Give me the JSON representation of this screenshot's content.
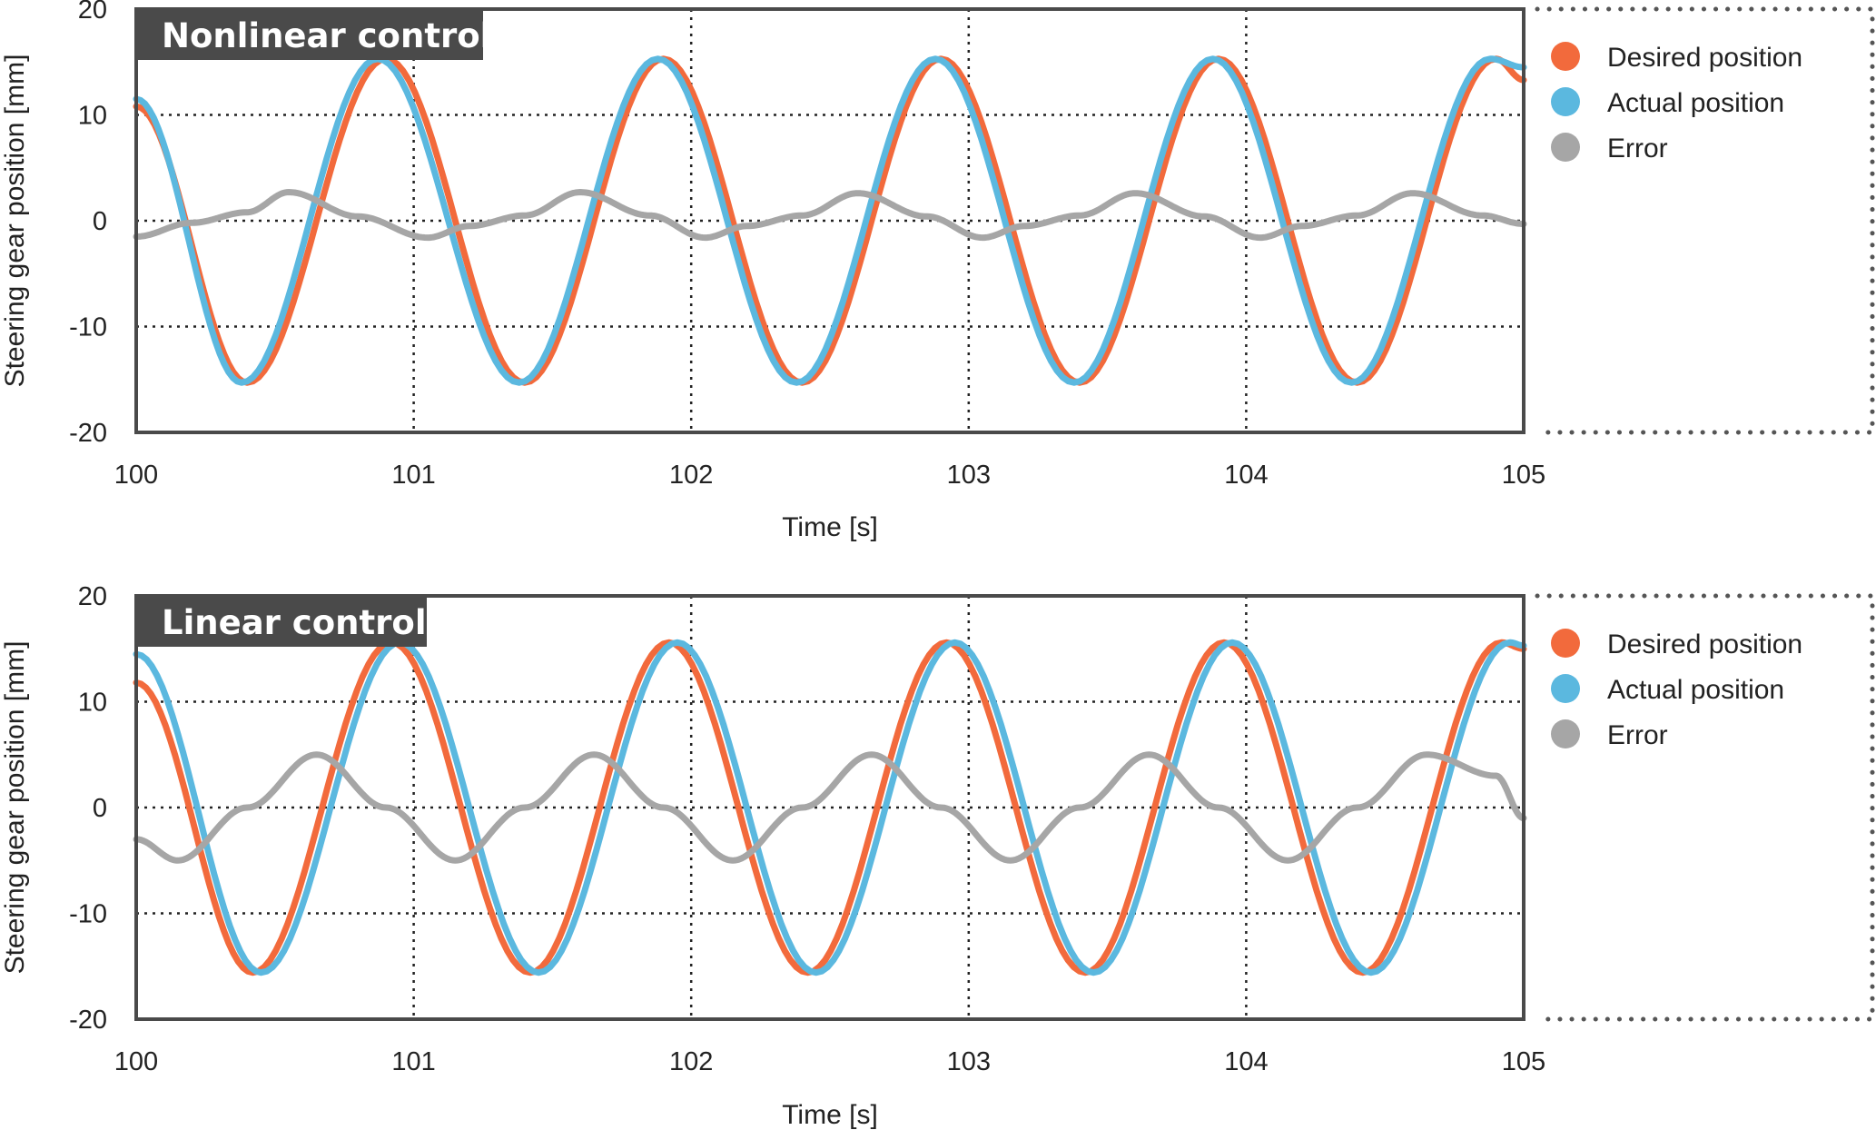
{
  "colors": {
    "desired": "#f26a3c",
    "actual": "#5bb8df",
    "error": "#a6a6a6",
    "frame": "#4a4a4a",
    "title_bg": "#4a4a4a"
  },
  "chart_data": [
    {
      "type": "line",
      "title": "Nonlinear control",
      "xlabel": "Time [s]",
      "ylabel": "Steering gear position [mm]",
      "xlim": [
        100,
        105
      ],
      "ylim": [
        -20,
        20
      ],
      "xticks": [
        "100",
        "101",
        "102",
        "103",
        "104",
        "105"
      ],
      "yticks": [
        "20",
        "10",
        "0",
        "-10",
        "-20"
      ],
      "grid": true,
      "legend_position": "right",
      "legend": [
        "Desired position",
        "Actual position",
        "Error"
      ],
      "series": [
        {
          "name": "Desired position",
          "x": [
            100.0,
            100.4,
            100.9,
            101.4,
            101.9,
            102.4,
            102.9,
            103.4,
            103.9,
            104.4,
            104.9,
            105.0
          ],
          "y": [
            10.8,
            -15.3,
            15.3,
            -15.3,
            15.3,
            -15.3,
            15.3,
            -15.3,
            15.3,
            -15.3,
            15.3,
            13.3
          ]
        },
        {
          "name": "Actual position",
          "x": [
            100.0,
            100.38,
            100.87,
            101.38,
            101.88,
            102.38,
            102.88,
            103.38,
            103.88,
            104.38,
            104.88,
            105.0
          ],
          "y": [
            11.5,
            -15.3,
            15.3,
            -15.3,
            15.3,
            -15.3,
            15.3,
            -15.3,
            15.3,
            -15.3,
            15.3,
            14.5
          ]
        },
        {
          "name": "Error",
          "x": [
            100.0,
            100.2,
            100.4,
            100.55,
            100.8,
            101.05,
            101.2,
            101.4,
            101.6,
            101.85,
            102.05,
            102.2,
            102.4,
            102.6,
            102.85,
            103.05,
            103.2,
            103.4,
            103.6,
            103.85,
            104.05,
            104.2,
            104.4,
            104.6,
            104.85,
            105.0
          ],
          "y": [
            -1.5,
            -0.2,
            0.8,
            2.7,
            0.4,
            -1.6,
            -0.5,
            0.5,
            2.7,
            0.5,
            -1.6,
            -0.5,
            0.5,
            2.6,
            0.4,
            -1.6,
            -0.5,
            0.5,
            2.6,
            0.4,
            -1.6,
            -0.5,
            0.5,
            2.6,
            0.5,
            -0.3
          ]
        }
      ]
    },
    {
      "type": "line",
      "title": "Linear control",
      "xlabel": "Time [s]",
      "ylabel": "Steering gear position [mm]",
      "xlim": [
        100,
        105
      ],
      "ylim": [
        -20,
        20
      ],
      "xticks": [
        "100",
        "101",
        "102",
        "103",
        "104",
        "105"
      ],
      "yticks": [
        "20",
        "10",
        "0",
        "-10",
        "-20"
      ],
      "grid": true,
      "legend_position": "right",
      "legend": [
        "Desired position",
        "Actual position",
        "Error"
      ],
      "series": [
        {
          "name": "Desired position",
          "x": [
            100.0,
            100.42,
            100.92,
            101.42,
            101.92,
            102.42,
            102.92,
            103.42,
            103.92,
            104.42,
            104.92,
            105.0
          ],
          "y": [
            11.8,
            -15.6,
            15.6,
            -15.6,
            15.6,
            -15.6,
            15.6,
            -15.6,
            15.6,
            -15.6,
            15.6,
            15.0
          ]
        },
        {
          "name": "Actual position",
          "x": [
            100.0,
            100.45,
            100.95,
            101.45,
            101.95,
            102.45,
            102.95,
            103.45,
            103.95,
            104.45,
            104.95,
            105.0
          ],
          "y": [
            14.5,
            -15.6,
            15.6,
            -15.6,
            15.6,
            -15.6,
            15.6,
            -15.6,
            15.6,
            -15.6,
            15.6,
            15.3
          ]
        },
        {
          "name": "Error",
          "x": [
            100.0,
            100.15,
            100.4,
            100.65,
            100.9,
            101.15,
            101.4,
            101.65,
            101.9,
            102.15,
            102.4,
            102.65,
            102.9,
            103.15,
            103.4,
            103.65,
            103.9,
            104.15,
            104.4,
            104.65,
            104.9,
            105.0
          ],
          "y": [
            -3.0,
            -5.0,
            0.0,
            5.0,
            0.0,
            -5.0,
            0.0,
            5.0,
            0.0,
            -5.0,
            0.0,
            5.0,
            0.0,
            -5.0,
            0.0,
            5.0,
            0.0,
            -5.0,
            0.0,
            5.0,
            3.0,
            -1.0
          ]
        }
      ]
    }
  ]
}
